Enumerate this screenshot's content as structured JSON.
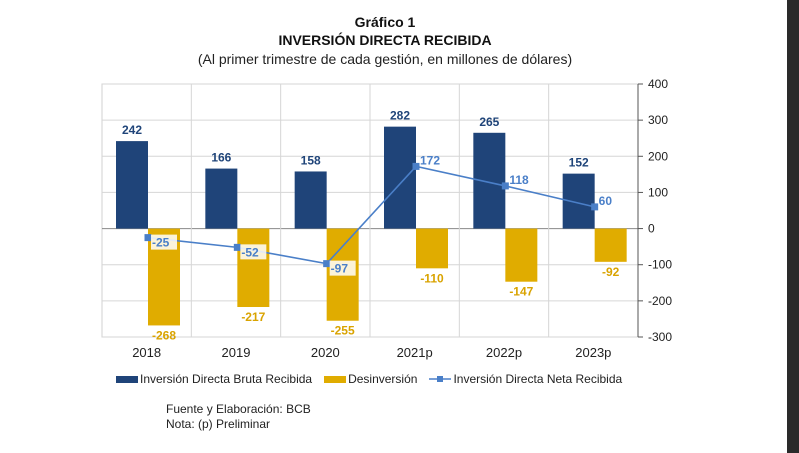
{
  "chart_data": {
    "type": "bar",
    "label": "Gráfico 1",
    "title": "INVERSIÓN DIRECTA RECIBIDA",
    "subtitle": "(Al primer trimestre de cada gestión, en millones de dólares)",
    "categories": [
      "2018",
      "2019",
      "2020",
      "2021p",
      "2022p",
      "2023p"
    ],
    "ylim": [
      -300,
      400
    ],
    "yticks": [
      400,
      300,
      200,
      100,
      0,
      -100,
      -200,
      -300
    ],
    "grid": true,
    "legend_position": "bottom",
    "series": [
      {
        "name": "Inversión Directa Bruta Recibida",
        "type": "bar",
        "color": "#1f4479",
        "values": [
          242,
          166,
          158,
          282,
          265,
          152
        ]
      },
      {
        "name": "Desinversión",
        "type": "bar",
        "color": "#e0ac00",
        "values": [
          -268,
          -217,
          -255,
          -110,
          -147,
          -92
        ]
      },
      {
        "name": "Inversión Directa Neta Recibida",
        "type": "line",
        "color": "#4a7fc8",
        "values": [
          -25,
          -52,
          -97,
          172,
          118,
          60
        ]
      }
    ]
  },
  "notes": {
    "source": "Fuente y Elaboración: BCB",
    "note": "Nota: (p) Preliminar"
  }
}
